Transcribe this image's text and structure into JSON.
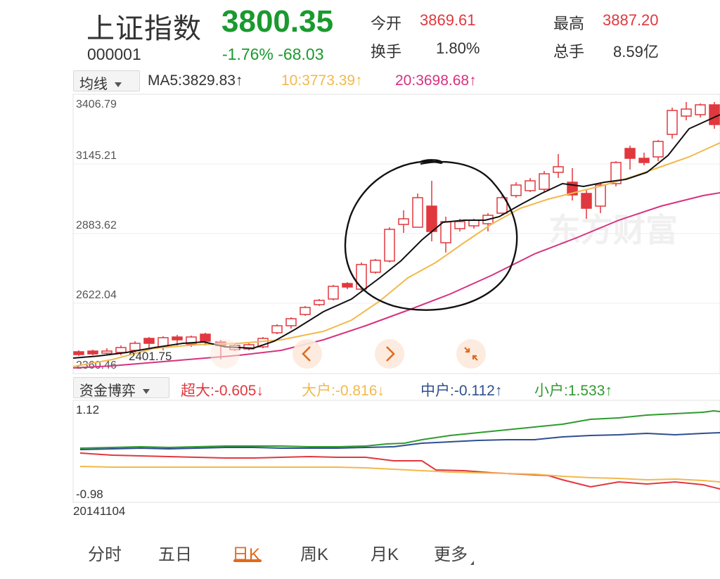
{
  "header": {
    "name": "上证指数",
    "code": "000001",
    "price": "3800.35",
    "change": "-1.76% -68.03",
    "stats": [
      {
        "label": "今开",
        "value": "3869.61"
      },
      {
        "label": "换手",
        "value": "1.80%"
      },
      {
        "label": "最高",
        "value": "3887.20"
      },
      {
        "label": "总手",
        "value": "8.59亿"
      }
    ]
  },
  "ma_bar": {
    "selector": "均线",
    "ma5": "MA5:3829.83↑",
    "ma10": "10:3773.39↑",
    "ma20": "20:3698.68↑"
  },
  "kline": {
    "y_labels": [
      "3406.79",
      "3145.21",
      "2883.62",
      "2622.04",
      "2360.46"
    ],
    "low_annotation": "2401.75",
    "watermark": "东方财富",
    "colors": {
      "up": "#e0383e",
      "down": "#e0383e",
      "ma5": "#111111",
      "ma10": "#f2b94b",
      "ma20": "#d6327f"
    }
  },
  "capital": {
    "selector": "资金博弈",
    "super_large": "超大:-0.605↓",
    "large": "大户:-0.816↓",
    "medium": "中户:-0.112↑",
    "small": "小户:1.533↑",
    "y_max": "1.12",
    "y_min": "-0.98",
    "date": "20141104",
    "colors": {
      "super_large": "#e0383e",
      "large": "#f2b94b",
      "medium": "#2f4f8f",
      "small": "#2f9b2f"
    }
  },
  "tabs": [
    {
      "label": "分时"
    },
    {
      "label": "五日"
    },
    {
      "label": "日K"
    },
    {
      "label": "周K"
    },
    {
      "label": "月K"
    },
    {
      "label": "更多"
    }
  ]
}
